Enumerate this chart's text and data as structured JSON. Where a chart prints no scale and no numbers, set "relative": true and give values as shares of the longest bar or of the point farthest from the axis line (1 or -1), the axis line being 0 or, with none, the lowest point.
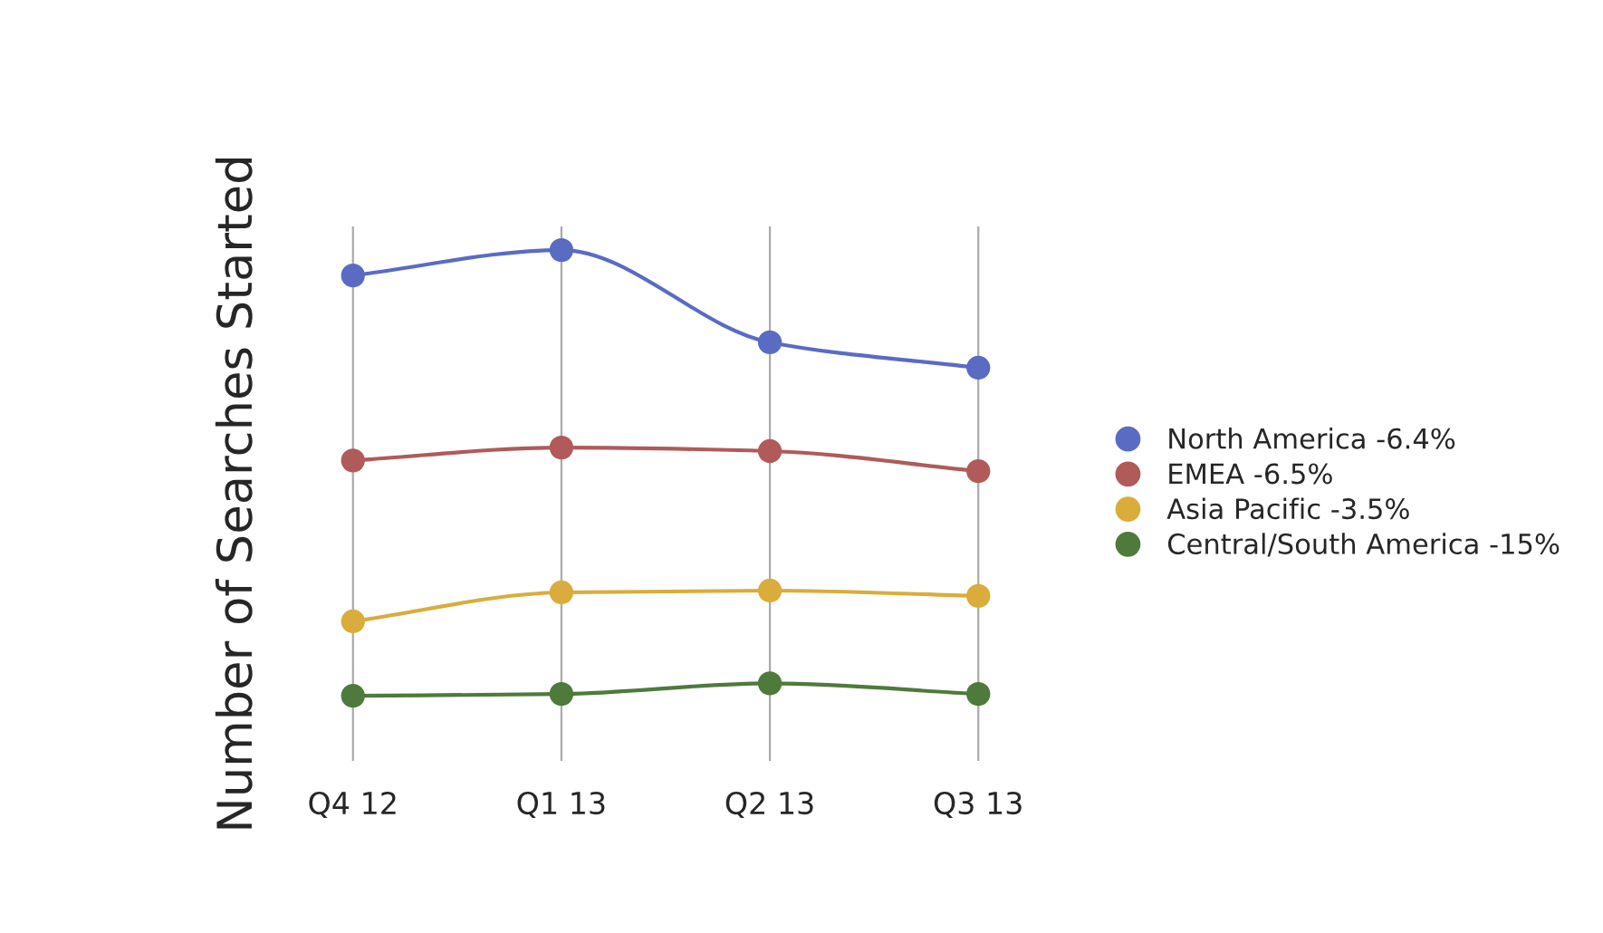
{
  "chart_data": {
    "type": "line",
    "ylabel": "Number of Searches Started",
    "relative": true,
    "categories": [
      "Q4 12",
      "Q1 13",
      "Q2 13",
      "Q3 13"
    ],
    "series": [
      {
        "name": "North America -6.4%",
        "color": "#5a6bc4",
        "values": [
          0.943,
          1,
          0.793,
          0.736
        ]
      },
      {
        "name": "EMEA -6.5%",
        "color": "#b05a5a",
        "values": [
          0.528,
          0.557,
          0.549,
          0.504
        ]
      },
      {
        "name": "Asia Pacific -3.5%",
        "color": "#d9ac3c",
        "values": [
          0.167,
          0.232,
          0.236,
          0.224
        ]
      },
      {
        "name": "Central/South America -15%",
        "color": "#4e7a3c",
        "values": [
          0,
          0.004,
          0.028,
          0.004
        ]
      }
    ],
    "grid": "x",
    "legend": "right",
    "marker": "circle",
    "line_style": "solid"
  }
}
